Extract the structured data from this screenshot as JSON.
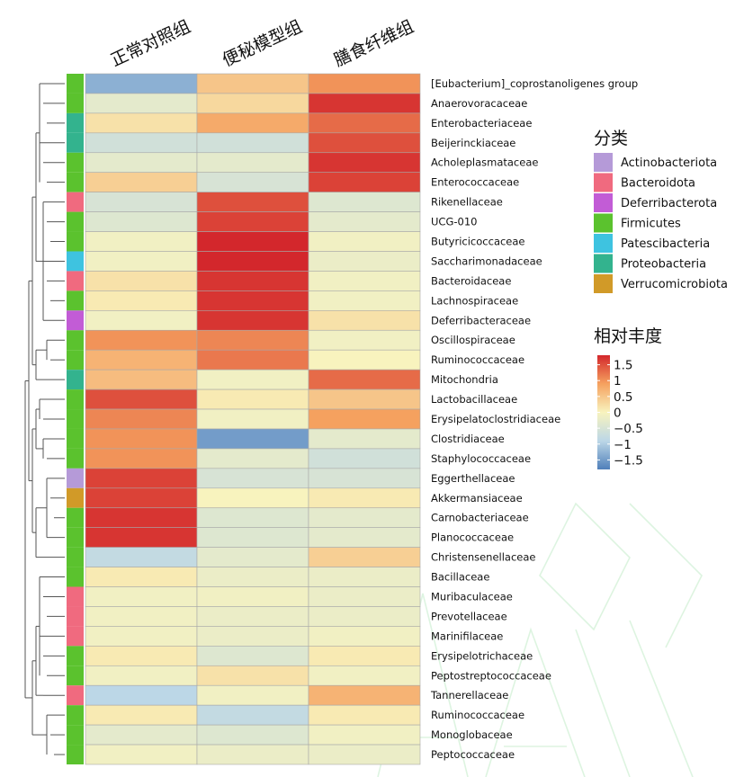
{
  "chart_data": {
    "type": "heatmap",
    "title": "",
    "columns": [
      "正常对照组",
      "便秘模型组",
      "膳食纤维组"
    ],
    "rows": [
      {
        "name": "[Eubacterium]_coprostanoligenes_group",
        "phylum": "Firmicutes",
        "values": [
          -1.3,
          0.5,
          1.0
        ]
      },
      {
        "name": "Anaerovoracaceae",
        "phylum": "Firmicutes",
        "values": [
          -0.3,
          0.3,
          1.7
        ]
      },
      {
        "name": "Enterobacteriaceae",
        "phylum": "Proteobacteria",
        "values": [
          0.2,
          0.8,
          1.3
        ]
      },
      {
        "name": "Beijerinckiaceae",
        "phylum": "Proteobacteria",
        "values": [
          -0.6,
          -0.6,
          1.5
        ]
      },
      {
        "name": "Acholeplasmataceae",
        "phylum": "Firmicutes",
        "values": [
          -0.3,
          -0.3,
          1.7
        ]
      },
      {
        "name": "Enterococcaceae",
        "phylum": "Firmicutes",
        "values": [
          0.4,
          -0.5,
          1.6
        ]
      },
      {
        "name": "Rikenellaceae",
        "phylum": "Bacteroidota",
        "values": [
          -0.5,
          1.5,
          -0.4
        ]
      },
      {
        "name": "UCG-010",
        "phylum": "Firmicutes",
        "values": [
          -0.4,
          1.6,
          -0.3
        ]
      },
      {
        "name": "Butyricicoccaceae",
        "phylum": "Firmicutes",
        "values": [
          -0.1,
          1.8,
          -0.1
        ]
      },
      {
        "name": "Saccharimonadaceae",
        "phylum": "Patescibacteria",
        "values": [
          -0.1,
          1.8,
          -0.2
        ]
      },
      {
        "name": "Bacteroidaceae",
        "phylum": "Bacteroidota",
        "values": [
          0.2,
          1.7,
          -0.1
        ]
      },
      {
        "name": "Lachnospiraceae",
        "phylum": "Firmicutes",
        "values": [
          0.1,
          1.7,
          -0.1
        ]
      },
      {
        "name": "Deferribacteraceae",
        "phylum": "Deferribacterota",
        "values": [
          -0.1,
          1.7,
          0.2
        ]
      },
      {
        "name": "Oscillospiraceae",
        "phylum": "Firmicutes",
        "values": [
          1.0,
          1.1,
          -0.1
        ]
      },
      {
        "name": "Ruminococcaceae",
        "phylum": "Firmicutes",
        "values": [
          0.7,
          1.2,
          0.0
        ]
      },
      {
        "name": "Mitochondria",
        "phylum": "Proteobacteria",
        "values": [
          0.6,
          -0.1,
          1.3
        ]
      },
      {
        "name": "Lactobacillaceae",
        "phylum": "Firmicutes",
        "values": [
          1.5,
          0.1,
          0.5
        ]
      },
      {
        "name": "Erysipelatoclostridiaceae",
        "phylum": "Firmicutes",
        "values": [
          1.1,
          -0.1,
          0.9
        ]
      },
      {
        "name": "Clostridiaceae",
        "phylum": "Firmicutes",
        "values": [
          1.0,
          -1.5,
          -0.3
        ]
      },
      {
        "name": "Staphylococcaceae",
        "phylum": "Firmicutes",
        "values": [
          1.0,
          -0.3,
          -0.6
        ]
      },
      {
        "name": "Eggerthellaceae",
        "phylum": "Actinobacteriota",
        "values": [
          1.6,
          -0.5,
          -0.5
        ]
      },
      {
        "name": "Akkermansiaceae",
        "phylum": "Verrucomicrobiota",
        "values": [
          1.6,
          0.0,
          0.1
        ]
      },
      {
        "name": "Carnobacteriaceae",
        "phylum": "Firmicutes",
        "values": [
          1.7,
          -0.4,
          -0.3
        ]
      },
      {
        "name": "Planococcaceae",
        "phylum": "Firmicutes",
        "values": [
          1.7,
          -0.4,
          -0.3
        ]
      },
      {
        "name": "Christensenellaceae",
        "phylum": "Firmicutes",
        "values": [
          -0.8,
          -0.3,
          0.4
        ]
      },
      {
        "name": "Bacillaceae",
        "phylum": "Firmicutes",
        "values": [
          0.1,
          -0.2,
          -0.2
        ]
      },
      {
        "name": "Muribaculaceae",
        "phylum": "Bacteroidota",
        "values": [
          -0.1,
          -0.1,
          -0.2
        ]
      },
      {
        "name": "Prevotellaceae",
        "phylum": "Bacteroidota",
        "values": [
          -0.1,
          -0.2,
          -0.2
        ]
      },
      {
        "name": "Marinifilaceae",
        "phylum": "Bacteroidota",
        "values": [
          -0.1,
          -0.2,
          -0.1
        ]
      },
      {
        "name": "Erysipelotrichaceae",
        "phylum": "Firmicutes",
        "values": [
          0.1,
          -0.4,
          0.1
        ]
      },
      {
        "name": "Peptostreptococcaceae",
        "phylum": "Firmicutes",
        "values": [
          -0.1,
          0.2,
          -0.1
        ]
      },
      {
        "name": "Tannerellaceae",
        "phylum": "Bacteroidota",
        "values": [
          -0.9,
          -0.1,
          0.7
        ]
      },
      {
        "name": "Ruminococcaceae",
        "phylum": "Firmicutes",
        "values": [
          0.1,
          -0.8,
          0.1
        ]
      },
      {
        "name": "Monoglobaceae",
        "phylum": "Firmicutes",
        "values": [
          -0.3,
          -0.4,
          -0.1
        ]
      },
      {
        "name": "Peptococcaceae",
        "phylum": "Firmicutes",
        "values": [
          -0.1,
          -0.2,
          -0.2
        ]
      }
    ],
    "category_legend": {
      "title": "分类",
      "items": [
        {
          "name": "Actinobacteriota",
          "color": "#b59ad8"
        },
        {
          "name": "Bacteroidota",
          "color": "#f06a7f"
        },
        {
          "name": "Deferribacterota",
          "color": "#c25cd6"
        },
        {
          "name": "Firmicutes",
          "color": "#5bc22e"
        },
        {
          "name": "Patescibacteria",
          "color": "#3ec3e0"
        },
        {
          "name": "Proteobacteria",
          "color": "#33b38e"
        },
        {
          "name": "Verrucomicrobiota",
          "color": "#d19a28"
        }
      ]
    },
    "color_scale": {
      "title": "相对丰度",
      "min": -1.8,
      "max": 1.8,
      "ticks": [
        {
          "value": 1.5,
          "label": "1.5"
        },
        {
          "value": 1,
          "label": "1"
        },
        {
          "value": 0.5,
          "label": "0.5"
        },
        {
          "value": 0,
          "label": "0"
        },
        {
          "value": -0.5,
          "label": "−0.5"
        },
        {
          "value": -1,
          "label": "−1"
        },
        {
          "value": -1.5,
          "label": "−1.5"
        }
      ],
      "stops": [
        {
          "value": -1.8,
          "color": "#4f7fba"
        },
        {
          "value": -0.9,
          "color": "#bcd7e7"
        },
        {
          "value": 0,
          "color": "#f8f3be"
        },
        {
          "value": 0.9,
          "color": "#f5a15f"
        },
        {
          "value": 1.8,
          "color": "#d3272c"
        }
      ]
    },
    "dendrogram": "left"
  }
}
